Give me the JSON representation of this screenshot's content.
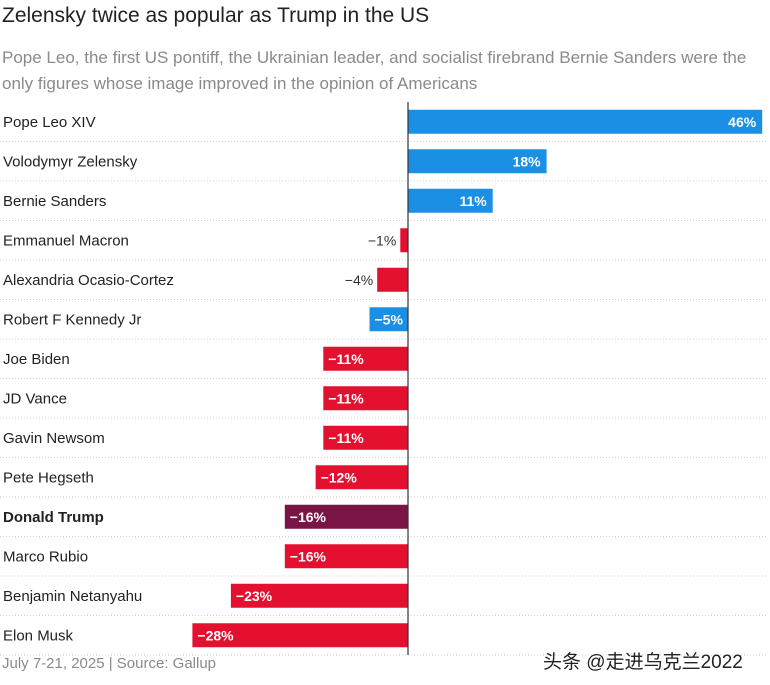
{
  "title": "Zelensky twice as popular as Trump in the US",
  "subtitle": "Pope Leo, the first US pontiff, the Ukrainian leader, and socialist firebrand Bernie Sanders were the only figures whose image improved in the opinion of Americans",
  "footer": "July 7-21, 2025 | Source: Gallup",
  "watermark": "头条 @走进乌克兰2022",
  "colors": {
    "positive": "#1b8fe4",
    "negative": "#e3102f",
    "highlight": "#7a1446",
    "grid": "#cfcfcf",
    "axis": "#333333"
  },
  "chart_data": {
    "type": "bar",
    "orientation": "horizontal",
    "title": "Zelensky twice as popular as Trump in the US",
    "categories": [
      "Pope Leo XIV",
      "Volodymyr Zelensky",
      "Bernie Sanders",
      "Emmanuel Macron",
      "Alexandria Ocasio-Cortez",
      "Robert F Kennedy Jr",
      "Joe Biden",
      "JD Vance",
      "Gavin Newsom",
      "Pete Hegseth",
      "Donald Trump",
      "Marco Rubio",
      "Benjamin Netanyahu",
      "Elon Musk"
    ],
    "values": [
      46,
      18,
      11,
      -1,
      -4,
      -5,
      -11,
      -11,
      -11,
      -12,
      -16,
      -16,
      -23,
      -28
    ],
    "labels": [
      "46%",
      "18%",
      "11%",
      "−1%",
      "−4%",
      "−5%",
      "−11%",
      "−11%",
      "−11%",
      "−12%",
      "−16%",
      "−16%",
      "−23%",
      "−28%"
    ],
    "bar_colors": [
      "positive",
      "positive",
      "positive",
      "negative",
      "negative",
      "positive",
      "negative",
      "negative",
      "negative",
      "negative",
      "highlight",
      "negative",
      "negative",
      "negative"
    ],
    "highlight_category": "Donald Trump",
    "xlim": [
      -30,
      46
    ],
    "grid": "horizontal separators",
    "legend": "none"
  }
}
